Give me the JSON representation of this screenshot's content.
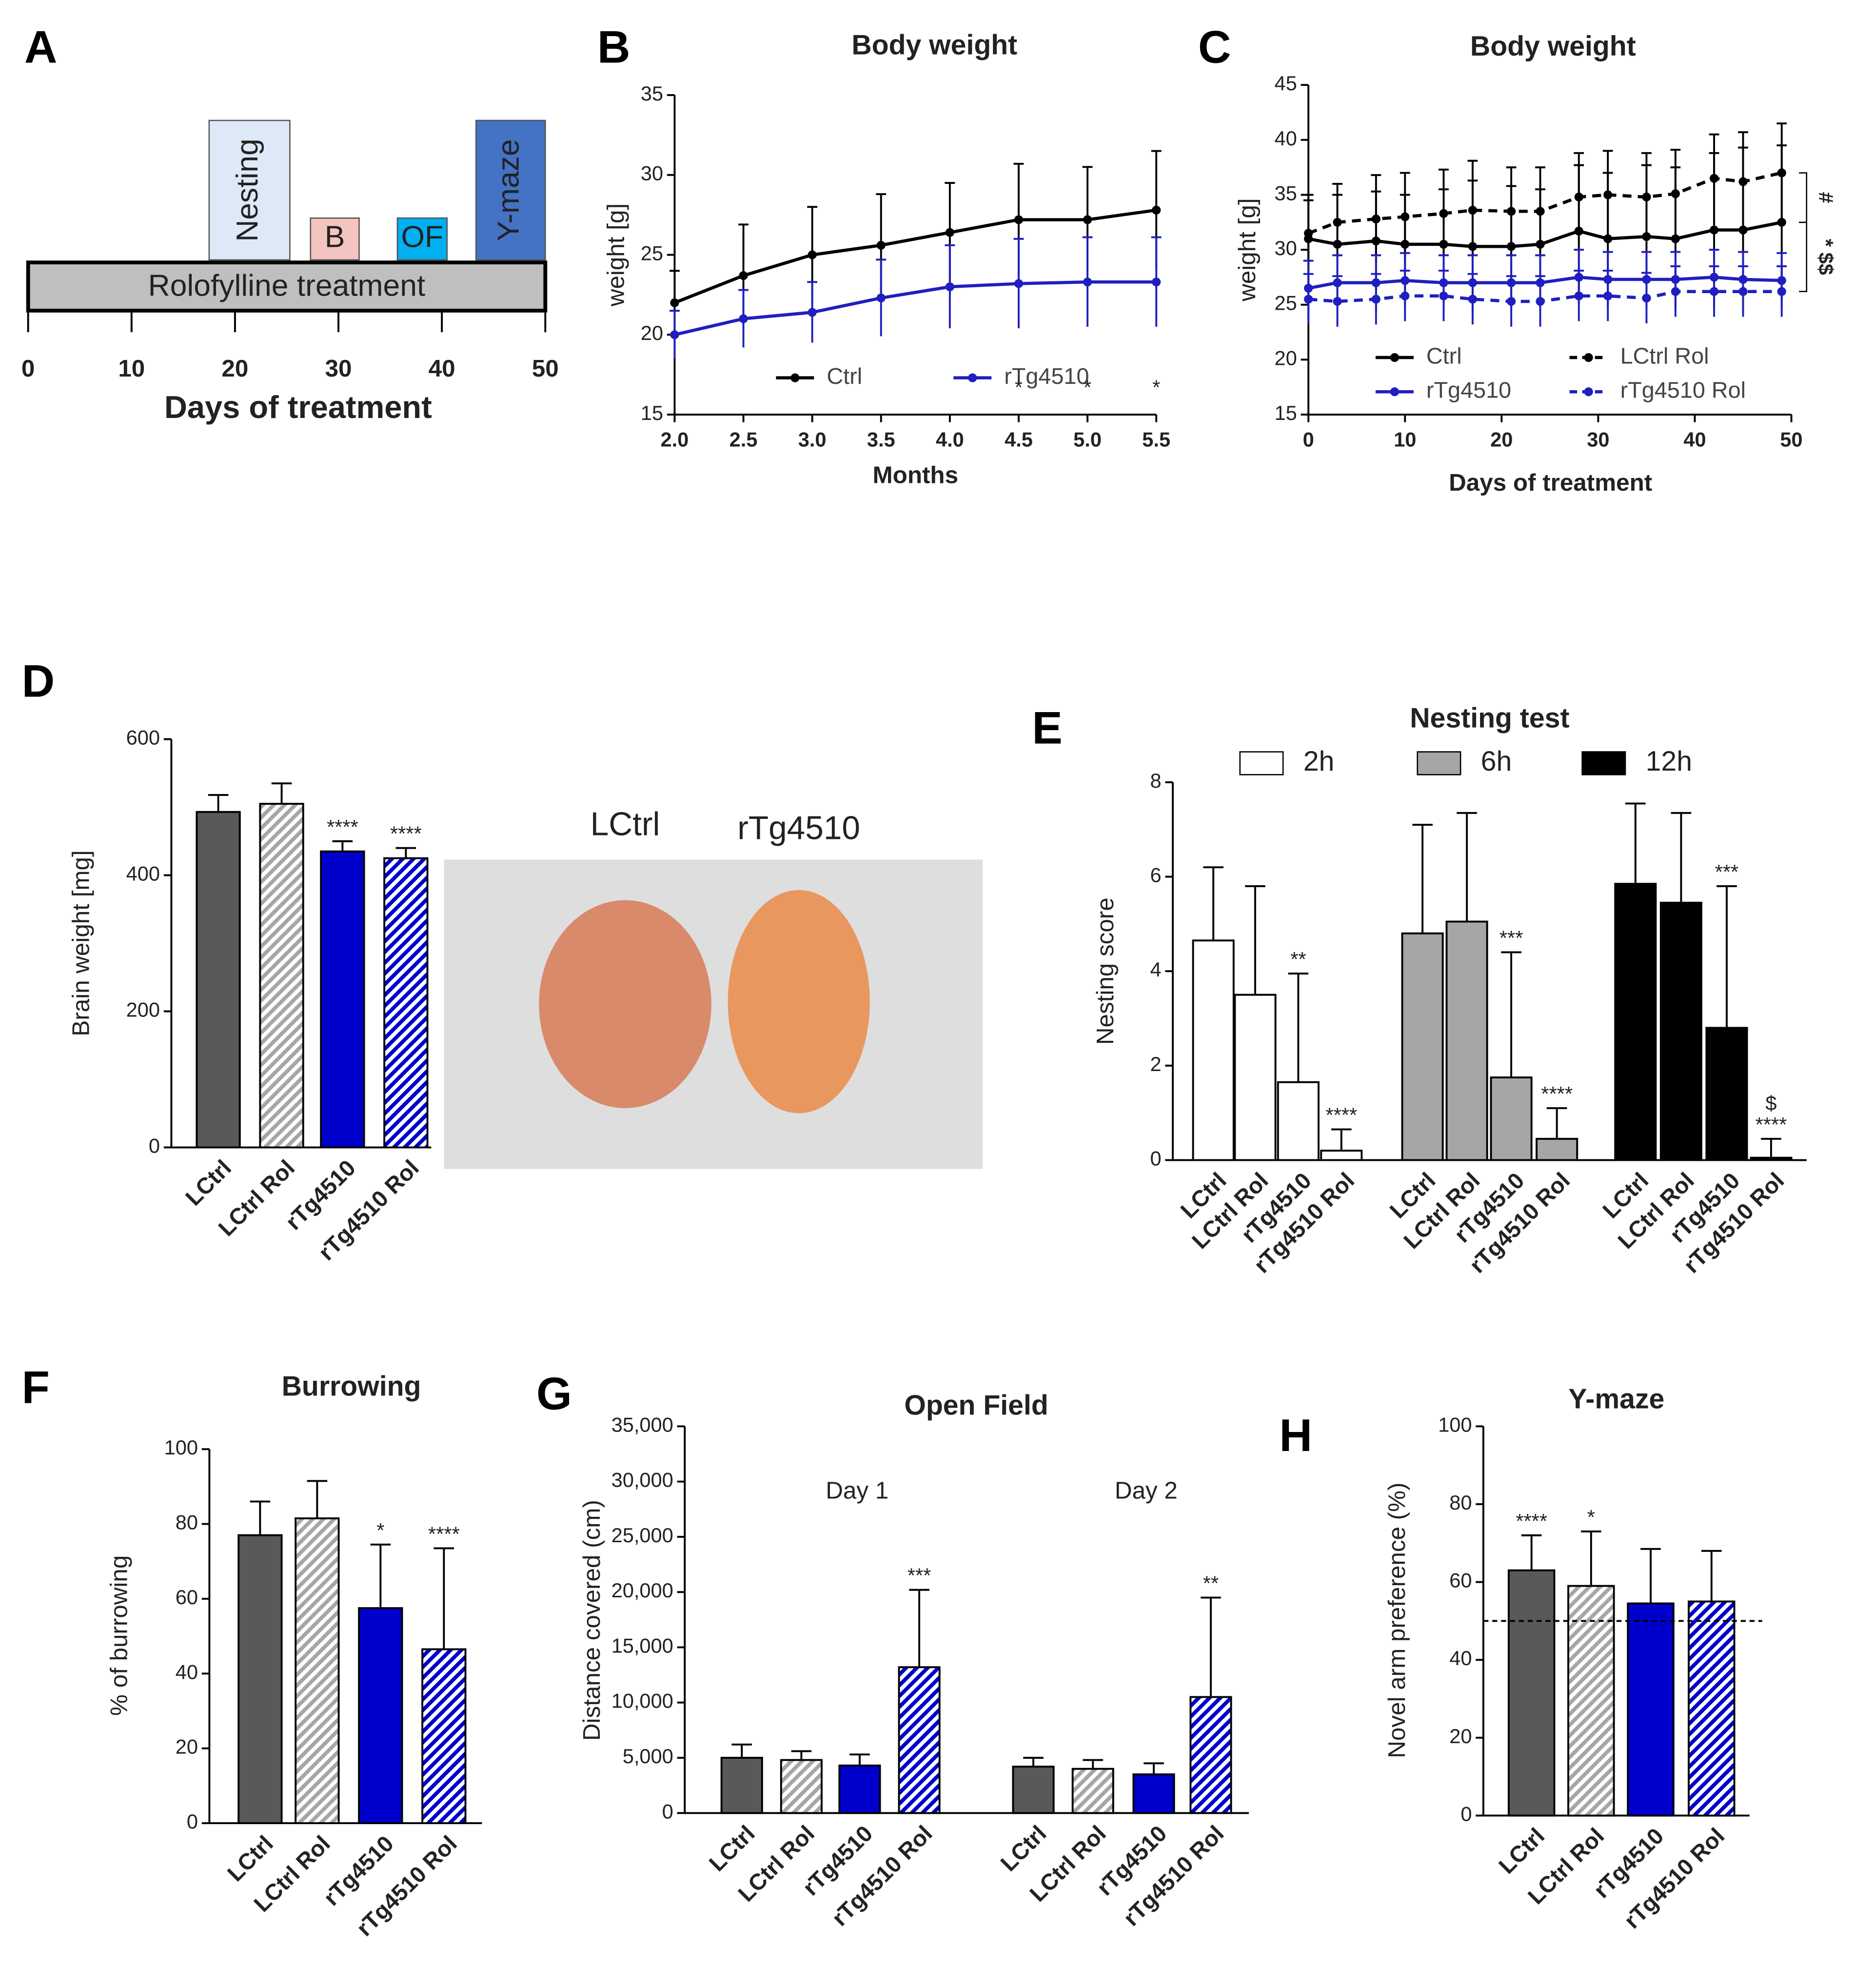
{
  "chart_data": [
    {
      "panel": "A",
      "type": "timeline",
      "bar_label": "Rolofylline treatment",
      "xlabel": "Days of treatment",
      "xlim": [
        0,
        50
      ],
      "xticks": [
        0,
        10,
        20,
        30,
        40,
        50
      ],
      "phases": [
        {
          "label": "Nesting",
          "start": 17.5,
          "end": 25.3,
          "color": "#dde9f6"
        },
        {
          "label": "B",
          "start": 27.3,
          "end": 32,
          "color": "#f4c4c0"
        },
        {
          "label": "OF",
          "start": 35.7,
          "end": 40.5,
          "color": "#00b0f0"
        },
        {
          "label": "Y-maze",
          "start": 43.3,
          "end": 50,
          "color": "#4472c4"
        }
      ]
    },
    {
      "panel": "B",
      "type": "line",
      "title": "Body weight",
      "xlabel": "Months",
      "ylabel": "weight [g]",
      "x": [
        2,
        2.5,
        3,
        3.5,
        4,
        4.5,
        5,
        5.5
      ],
      "xlim": [
        2,
        5.5
      ],
      "xticks": [
        {
          "value": 2,
          "label": "2.0"
        },
        2.5,
        {
          "value": 3,
          "label": "3.0"
        },
        3.5,
        {
          "value": 4,
          "label": "4.0"
        },
        4.5,
        {
          "value": 5,
          "label": "5.0"
        },
        5.5
      ],
      "ylim": [
        15,
        35
      ],
      "yticks": [
        15,
        20,
        25,
        30,
        35
      ],
      "legend": "bottom",
      "series": [
        {
          "name": "Ctrl",
          "color": "#000000",
          "dash": false,
          "values": [
            22,
            23.7,
            25,
            25.6,
            26.4,
            27.2,
            27.2,
            27.8
          ],
          "errors": [
            2,
            3.2,
            3,
            3.2,
            3.1,
            3.5,
            3.3,
            3.7
          ]
        },
        {
          "name": "rTg4510",
          "color": "#1f1fbf",
          "dash": false,
          "values": [
            20,
            21,
            21.4,
            22.3,
            23,
            23.2,
            23.3,
            23.3
          ],
          "errors": [
            1.5,
            1.8,
            1.9,
            2.4,
            2.6,
            2.8,
            2.8,
            2.8
          ]
        }
      ],
      "annotations": [
        {
          "text": "*",
          "x": 4.5,
          "y": 16.6
        },
        {
          "text": "*",
          "x": 5,
          "y": 16.6
        },
        {
          "text": "*",
          "x": 5.5,
          "y": 16.6
        }
      ]
    },
    {
      "panel": "C",
      "type": "line",
      "title": "Body weight",
      "xlabel": "Days of treatment",
      "ylabel": "weight [g]",
      "x": [
        0,
        3,
        7,
        10,
        14,
        17,
        21,
        24,
        28,
        31,
        35,
        38,
        42,
        45,
        49
      ],
      "xlim": [
        0,
        50
      ],
      "xticks": [
        0,
        10,
        20,
        30,
        40,
        50
      ],
      "ylim": [
        15,
        45
      ],
      "yticks": [
        15,
        20,
        25,
        30,
        35,
        40,
        45
      ],
      "legend": "bottom",
      "series": [
        {
          "name": "Ctrl",
          "color": "#000000",
          "dash": false,
          "values": [
            31,
            30.5,
            30.8,
            30.5,
            30.5,
            30.3,
            30.3,
            30.5,
            31.7,
            31,
            31.2,
            31,
            31.8,
            31.8,
            32.5
          ],
          "errors": [
            3.5,
            4.5,
            4.5,
            4.5,
            5,
            6,
            5.5,
            5,
            6,
            6,
            6.5,
            6.5,
            7,
            7.5,
            7
          ]
        },
        {
          "name": "LCtrl Rol",
          "color": "#000000",
          "dash": true,
          "values": [
            31.5,
            32.5,
            32.8,
            33,
            33.3,
            33.6,
            33.5,
            33.5,
            34.8,
            35,
            34.8,
            35.1,
            36.5,
            36.2,
            37
          ],
          "errors": [
            3.5,
            3.5,
            4,
            4,
            4,
            4.5,
            4,
            4,
            4,
            4,
            4,
            4,
            4,
            4.5,
            4.5
          ]
        },
        {
          "name": "rTg4510",
          "color": "#1f1fbf",
          "dash": false,
          "values": [
            26.5,
            27,
            27,
            27.2,
            27,
            27,
            27,
            27,
            27.5,
            27.3,
            27.3,
            27.3,
            27.5,
            27.3,
            27.2
          ],
          "errors": [
            2.5,
            2.5,
            2.5,
            2.5,
            2.5,
            2.5,
            2.5,
            2.5,
            2.5,
            2.5,
            2.5,
            2.5,
            2.5,
            2.5,
            2.5
          ]
        },
        {
          "name": "rTg4510 Rol",
          "color": "#1f1fbf",
          "dash": true,
          "values": [
            25.5,
            25.3,
            25.5,
            25.8,
            25.8,
            25.5,
            25.3,
            25.3,
            25.8,
            25.8,
            25.6,
            26.2,
            26.2,
            26.2,
            26.2
          ],
          "errors": [
            2.3,
            2.3,
            2.3,
            2.3,
            2.3,
            2.3,
            2.3,
            2.3,
            2.3,
            2.3,
            2.3,
            2.3,
            2.3,
            2.3,
            2.3
          ]
        }
      ],
      "brackets": [
        {
          "text": "#",
          "from": 37,
          "to": 32.5
        },
        {
          "text": "* $$",
          "from": 32.5,
          "to": 26.2
        }
      ]
    },
    {
      "panel": "D",
      "type": "bar",
      "ylabel": "Brain weight [mg]",
      "categories": [
        "LCtrl",
        "LCtrl Rol",
        "rTg4510",
        "rTg4510 Rol"
      ],
      "values": [
        493,
        505,
        435,
        425
      ],
      "errors": [
        25,
        30,
        15,
        15
      ],
      "sig": [
        null,
        null,
        "****",
        "****"
      ],
      "colors": [
        "#595959",
        "#a6a6a6",
        "#0000cc",
        "#0000cc"
      ],
      "hatch": [
        false,
        true,
        false,
        true
      ],
      "ylim": [
        0,
        600
      ],
      "yticks": [
        0,
        200,
        400,
        600
      ],
      "photo_labels": [
        "LCtrl",
        "rTg4510"
      ]
    },
    {
      "panel": "E",
      "type": "bar",
      "title": "Nesting test",
      "ylabel": "Nesting score",
      "legend": "top",
      "categories": [
        "LCtrl",
        "LCtrl Rol",
        "rTg4510",
        "rTg4510 Rol"
      ],
      "series": [
        {
          "name": "2h",
          "color": "#ffffff",
          "values": [
            4.65,
            3.5,
            1.65,
            0.2
          ],
          "errors": [
            1.55,
            2.3,
            2.3,
            0.45
          ],
          "sig": [
            null,
            null,
            "**",
            "****"
          ]
        },
        {
          "name": "6h",
          "color": "#a6a6a6",
          "values": [
            4.8,
            5.05,
            1.75,
            0.45
          ],
          "errors": [
            2.3,
            2.3,
            2.65,
            0.65
          ],
          "sig": [
            null,
            null,
            "***",
            "****"
          ]
        },
        {
          "name": "12h",
          "color": "#000000",
          "values": [
            5.85,
            5.45,
            2.8,
            0.05
          ],
          "errors": [
            1.7,
            1.9,
            3.0,
            0.4
          ],
          "sig": [
            null,
            null,
            "***",
            "****"
          ]
        }
      ],
      "annotations": [
        {
          "text": "$",
          "series": 2,
          "index": 3
        }
      ],
      "ylim": [
        0,
        8
      ],
      "yticks": [
        0,
        2,
        4,
        6,
        8
      ]
    },
    {
      "panel": "F",
      "type": "bar",
      "title": "Burrowing",
      "ylabel": "% of burrowing",
      "categories": [
        "LCtrl",
        "LCtrl Rol",
        "rTg4510",
        "rTg4510 Rol"
      ],
      "values": [
        77,
        81.5,
        57.5,
        46.5
      ],
      "errors": [
        9,
        10,
        17,
        27
      ],
      "sig": [
        null,
        null,
        "*",
        "****"
      ],
      "colors": [
        "#595959",
        "#a6a6a6",
        "#0000cc",
        "#0000cc"
      ],
      "hatch": [
        false,
        true,
        false,
        true
      ],
      "ylim": [
        0,
        100
      ],
      "yticks": [
        0,
        20,
        40,
        60,
        80,
        100
      ]
    },
    {
      "panel": "G",
      "type": "bar",
      "title": "Open Field",
      "ylabel": "Distance covered (cm)",
      "legend": "group-labels",
      "categories": [
        "LCtrl",
        "LCtrl Rol",
        "rTg4510",
        "rTg4510 Rol"
      ],
      "colors": [
        "#595959",
        "#a6a6a6",
        "#0000cc",
        "#0000cc"
      ],
      "hatch": [
        false,
        true,
        false,
        true
      ],
      "series": [
        {
          "name": "Day 1",
          "values": [
            5000,
            4800,
            4300,
            13200
          ],
          "errors": [
            1200,
            800,
            1000,
            7000
          ],
          "sig": [
            null,
            null,
            null,
            "***"
          ]
        },
        {
          "name": "Day 2",
          "values": [
            4200,
            4000,
            3500,
            10500
          ],
          "errors": [
            800,
            800,
            1000,
            9000
          ],
          "sig": [
            null,
            null,
            null,
            "**"
          ]
        }
      ],
      "ylim": [
        0,
        35000
      ],
      "yticks": [
        0,
        {
          "value": 5000,
          "label": "5,000"
        },
        {
          "value": 10000,
          "label": "10,000"
        },
        {
          "value": 15000,
          "label": "15,000"
        },
        {
          "value": 20000,
          "label": "20,000"
        },
        {
          "value": 25000,
          "label": "25,000"
        },
        {
          "value": 30000,
          "label": "30,000"
        },
        {
          "value": 35000,
          "label": "35,000"
        }
      ]
    },
    {
      "panel": "H",
      "type": "bar",
      "title": "Y-maze",
      "ylabel": "Novel arm preference (%)",
      "categories": [
        "LCtrl",
        "LCtrl Rol",
        "rTg4510",
        "rTg4510 Rol"
      ],
      "values": [
        63,
        59,
        54.5,
        55
      ],
      "errors": [
        9,
        14,
        14,
        13
      ],
      "sig": [
        "****",
        "*",
        null,
        null
      ],
      "colors": [
        "#595959",
        "#a6a6a6",
        "#0000cc",
        "#0000cc"
      ],
      "hatch": [
        false,
        true,
        false,
        true
      ],
      "reference": 50,
      "ylim": [
        0,
        100
      ],
      "yticks": [
        0,
        20,
        40,
        60,
        80,
        100
      ]
    }
  ]
}
